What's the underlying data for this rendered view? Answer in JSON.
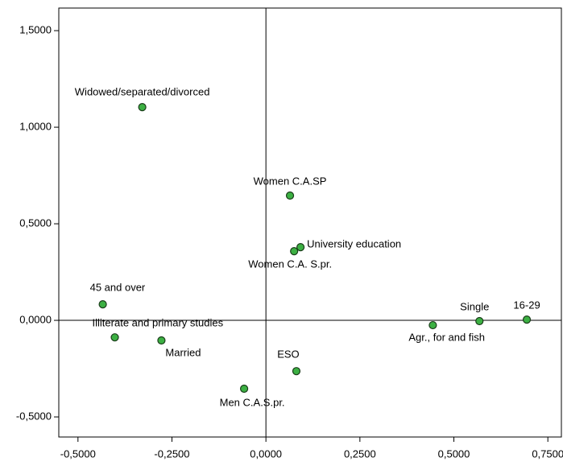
{
  "chart_data": {
    "type": "scatter",
    "series": [
      {
        "color": "#3cb043",
        "labels": [
          "Widowed/separated/divorced",
          "Women C.A.SP",
          "University education",
          "Women C.A. S.pr.",
          "45 and over",
          "Illiterate and primary studies",
          "Married",
          "ESO",
          "Men C.A.S.pr.",
          "Agr., for and fish",
          "Single",
          "16-29"
        ],
        "x": [
          -0.329,
          0.064,
          0.092,
          0.075,
          -0.434,
          -0.402,
          -0.278,
          0.081,
          -0.058,
          0.444,
          0.568,
          0.694
        ],
        "values": [
          1.104,
          0.646,
          0.379,
          0.358,
          0.083,
          -0.088,
          -0.104,
          -0.263,
          -0.354,
          -0.025,
          -0.004,
          0.004
        ]
      }
    ],
    "xlim": [
      -0.551,
      0.786
    ],
    "ylim": [
      -0.604,
      1.617
    ],
    "xticks": [
      {
        "value": -0.5,
        "label": "-0,5000"
      },
      {
        "value": -0.25,
        "label": "-0,2500"
      },
      {
        "value": 0,
        "label": "0,0000"
      },
      {
        "value": 0.25,
        "label": "0,2500"
      },
      {
        "value": 0.5,
        "label": "0,5000"
      },
      {
        "value": 0.75,
        "label": "0,7500"
      }
    ],
    "yticks": [
      {
        "value": -0.5,
        "label": "-0,5000"
      },
      {
        "value": 0,
        "label": "0,0000"
      },
      {
        "value": 0.5,
        "label": "0,5000"
      },
      {
        "value": 1,
        "label": "1,0000"
      },
      {
        "value": 1.5,
        "label": "1,5000"
      }
    ]
  }
}
